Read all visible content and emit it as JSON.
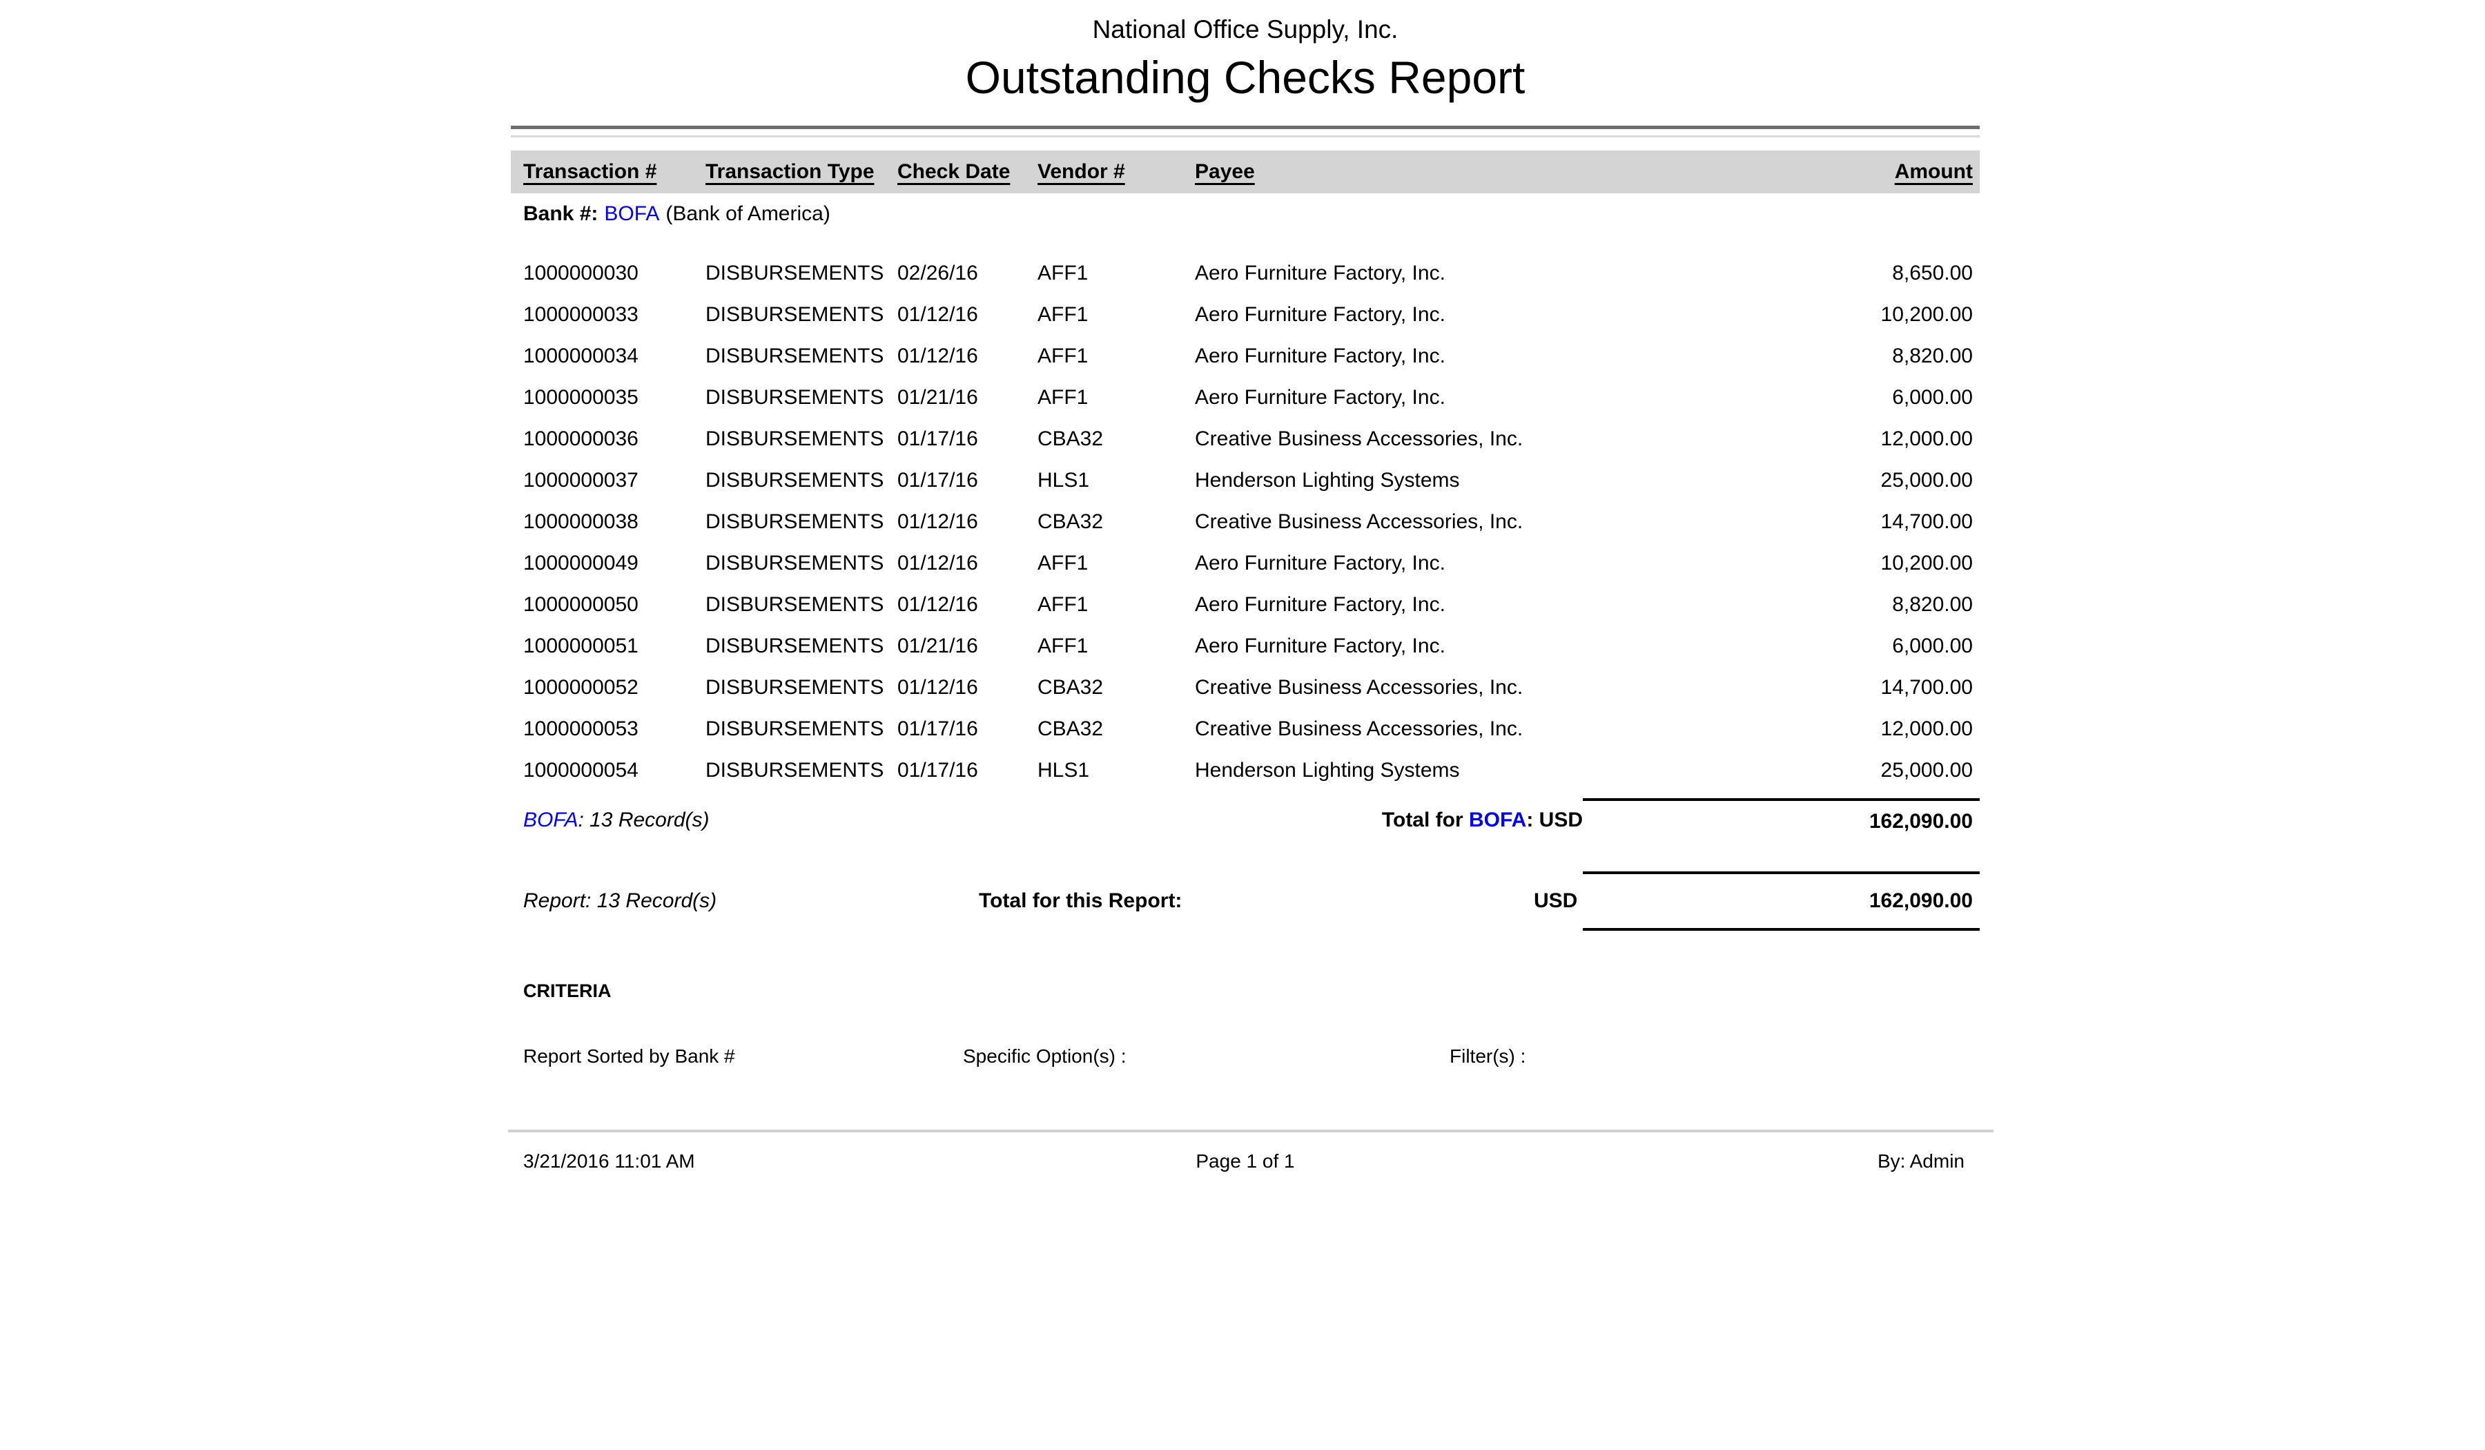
{
  "header": {
    "company": "National Office Supply, Inc.",
    "title": "Outstanding Checks Report"
  },
  "table": {
    "columns": {
      "transaction": "Transaction #",
      "type": "Transaction Type",
      "date": "Check Date",
      "vendor": "Vendor #",
      "payee": "Payee",
      "amount": "Amount"
    },
    "bank_group": {
      "label": "Bank #:",
      "code": "BOFA",
      "name": "(Bank of America)"
    },
    "rows": [
      {
        "transaction": "1000000030",
        "type": "DISBURSEMENTS",
        "date": "02/26/16",
        "vendor": "AFF1",
        "payee": "Aero Furniture Factory, Inc.",
        "amount": "8,650.00"
      },
      {
        "transaction": "1000000033",
        "type": "DISBURSEMENTS",
        "date": "01/12/16",
        "vendor": "AFF1",
        "payee": "Aero Furniture Factory, Inc.",
        "amount": "10,200.00"
      },
      {
        "transaction": "1000000034",
        "type": "DISBURSEMENTS",
        "date": "01/12/16",
        "vendor": "AFF1",
        "payee": "Aero Furniture Factory, Inc.",
        "amount": "8,820.00"
      },
      {
        "transaction": "1000000035",
        "type": "DISBURSEMENTS",
        "date": "01/21/16",
        "vendor": "AFF1",
        "payee": "Aero Furniture Factory, Inc.",
        "amount": "6,000.00"
      },
      {
        "transaction": "1000000036",
        "type": "DISBURSEMENTS",
        "date": "01/17/16",
        "vendor": "CBA32",
        "payee": "Creative Business Accessories, Inc.",
        "amount": "12,000.00"
      },
      {
        "transaction": "1000000037",
        "type": "DISBURSEMENTS",
        "date": "01/17/16",
        "vendor": "HLS1",
        "payee": "Henderson Lighting Systems",
        "amount": "25,000.00"
      },
      {
        "transaction": "1000000038",
        "type": "DISBURSEMENTS",
        "date": "01/12/16",
        "vendor": "CBA32",
        "payee": "Creative Business Accessories, Inc.",
        "amount": "14,700.00"
      },
      {
        "transaction": "1000000049",
        "type": "DISBURSEMENTS",
        "date": "01/12/16",
        "vendor": "AFF1",
        "payee": "Aero Furniture Factory, Inc.",
        "amount": "10,200.00"
      },
      {
        "transaction": "1000000050",
        "type": "DISBURSEMENTS",
        "date": "01/12/16",
        "vendor": "AFF1",
        "payee": "Aero Furniture Factory, Inc.",
        "amount": "8,820.00"
      },
      {
        "transaction": "1000000051",
        "type": "DISBURSEMENTS",
        "date": "01/21/16",
        "vendor": "AFF1",
        "payee": "Aero Furniture Factory, Inc.",
        "amount": "6,000.00"
      },
      {
        "transaction": "1000000052",
        "type": "DISBURSEMENTS",
        "date": "01/12/16",
        "vendor": "CBA32",
        "payee": "Creative Business Accessories, Inc.",
        "amount": "14,700.00"
      },
      {
        "transaction": "1000000053",
        "type": "DISBURSEMENTS",
        "date": "01/17/16",
        "vendor": "CBA32",
        "payee": "Creative Business Accessories, Inc.",
        "amount": "12,000.00"
      },
      {
        "transaction": "1000000054",
        "type": "DISBURSEMENTS",
        "date": "01/17/16",
        "vendor": "HLS1",
        "payee": "Henderson Lighting Systems",
        "amount": "25,000.00"
      }
    ],
    "group_total": {
      "records_code": "BOFA",
      "records_text": ": 13 Record(s)",
      "label_pre": "Total for ",
      "label_code": "BOFA",
      "label_post": ": USD",
      "amount": "162,090.00"
    },
    "report_total": {
      "records": "Report: 13 Record(s)",
      "label": "Total for this Report:",
      "currency": "USD",
      "amount": "162,090.00"
    }
  },
  "criteria": {
    "heading": "CRITERIA",
    "sorted_by": "Report Sorted by Bank #",
    "specific_options": "Specific Option(s) :",
    "filters": "Filter(s) :"
  },
  "footer": {
    "generated": "3/21/2016 11:01 AM",
    "page": "Page 1 of 1",
    "author": "By: Admin"
  },
  "colors": {
    "link_blue": "#0000ff",
    "header_band": "#d4d4d4"
  }
}
